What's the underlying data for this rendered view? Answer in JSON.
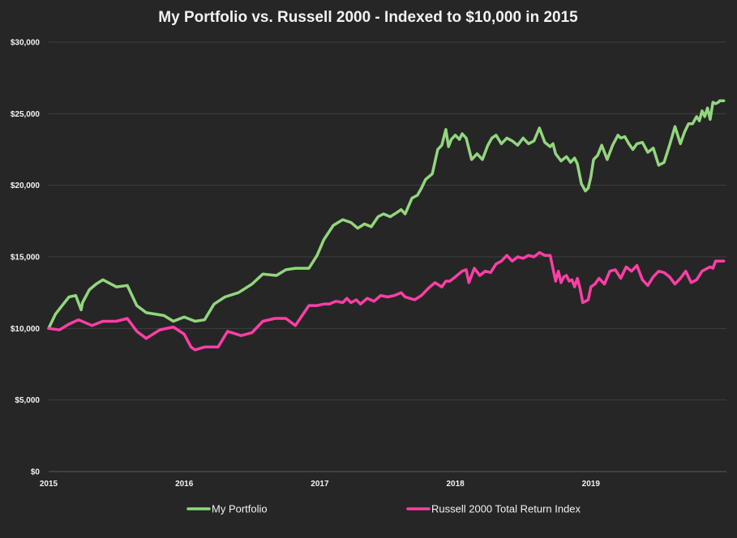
{
  "chart_data": {
    "type": "line",
    "title": "My Portfolio  vs. Russell  2000 - Indexed to $10,000 in 2015",
    "xlabel": "",
    "ylabel": "",
    "x_ticks": [
      {
        "value": 2015,
        "label": "2015"
      },
      {
        "value": 2016,
        "label": "2016"
      },
      {
        "value": 2017,
        "label": "2017"
      },
      {
        "value": 2018,
        "label": "2018"
      },
      {
        "value": 2019,
        "label": "2019"
      }
    ],
    "y_ticks": [
      {
        "value": 0,
        "label": "$0"
      },
      {
        "value": 5000,
        "label": "$5,000"
      },
      {
        "value": 10000,
        "label": "$10,000"
      },
      {
        "value": 15000,
        "label": "$15,000"
      },
      {
        "value": 20000,
        "label": "$20,000"
      },
      {
        "value": 25000,
        "label": "$25,000"
      },
      {
        "value": 30000,
        "label": "$30,000"
      }
    ],
    "xlim": [
      2015.0,
      2020.0
    ],
    "ylim": [
      0,
      30000
    ],
    "grid": true,
    "legend_position": "bottom",
    "series": [
      {
        "name": "My Portfolio",
        "color": "#92d67e",
        "x": [
          2015.0,
          2015.05,
          2015.1,
          2015.15,
          2015.2,
          2015.24,
          2015.25,
          2015.3,
          2015.35,
          2015.4,
          2015.5,
          2015.58,
          2015.65,
          2015.72,
          2015.85,
          2015.92,
          2016.0,
          2016.08,
          2016.15,
          2016.22,
          2016.3,
          2016.4,
          2016.5,
          2016.58,
          2016.68,
          2016.75,
          2016.82,
          2016.92,
          2016.98,
          2017.03,
          2017.1,
          2017.17,
          2017.23,
          2017.28,
          2017.33,
          2017.38,
          2017.43,
          2017.47,
          2017.52,
          2017.57,
          2017.6,
          2017.63,
          2017.68,
          2017.72,
          2017.75,
          2017.78,
          2017.83,
          2017.87,
          2017.9,
          2017.93,
          2017.95,
          2017.97,
          2018.0,
          2018.03,
          2018.05,
          2018.08,
          2018.12,
          2018.16,
          2018.2,
          2018.24,
          2018.27,
          2018.3,
          2018.34,
          2018.38,
          2018.42,
          2018.46,
          2018.5,
          2018.54,
          2018.58,
          2018.62,
          2018.66,
          2018.7,
          2018.72,
          2018.74,
          2018.78,
          2018.82,
          2018.85,
          2018.88,
          2018.9,
          2018.93,
          2018.96,
          2018.98,
          2019.0,
          2019.02,
          2019.05,
          2019.08,
          2019.12,
          2019.16,
          2019.2,
          2019.22,
          2019.25,
          2019.28,
          2019.31,
          2019.34,
          2019.38,
          2019.42,
          2019.46,
          2019.5,
          2019.54,
          2019.58,
          2019.62,
          2019.66,
          2019.69,
          2019.72,
          2019.75,
          2019.78,
          2019.8,
          2019.82,
          2019.84,
          2019.86,
          2019.88,
          2019.9,
          2019.92,
          2019.94,
          2019.95,
          2019.97,
          2019.98
        ],
        "values": [
          10000,
          11000,
          11600,
          12200,
          12300,
          11300,
          11800,
          12700,
          13100,
          13400,
          12900,
          13000,
          11600,
          11100,
          10900,
          10500,
          10800,
          10500,
          10600,
          11700,
          12200,
          12500,
          13100,
          13800,
          13700,
          14100,
          14200,
          14200,
          15100,
          16200,
          17200,
          17600,
          17400,
          17000,
          17300,
          17100,
          17800,
          18000,
          17800,
          18100,
          18300,
          18000,
          19100,
          19300,
          19800,
          20400,
          20800,
          22500,
          22800,
          23900,
          22700,
          23200,
          23500,
          23200,
          23600,
          23300,
          21800,
          22200,
          21800,
          22800,
          23300,
          23500,
          22900,
          23300,
          23100,
          22800,
          23300,
          22900,
          23100,
          24000,
          23000,
          22700,
          22900,
          22200,
          21700,
          22000,
          21600,
          21900,
          21500,
          20100,
          19600,
          19800,
          20600,
          21800,
          22100,
          22800,
          21800,
          22800,
          23500,
          23300,
          23400,
          22900,
          22500,
          22900,
          23000,
          22300,
          22600,
          21400,
          21600,
          22800,
          24100,
          22900,
          23700,
          24300,
          24300,
          24800,
          24500,
          25200,
          24800,
          25400,
          24600,
          25800,
          25700,
          25800,
          25900,
          25900,
          25900
        ]
      },
      {
        "name": "Russell 2000 Total Return Index",
        "color": "#ff3ea5",
        "x": [
          2015.0,
          2015.08,
          2015.15,
          2015.22,
          2015.32,
          2015.4,
          2015.5,
          2015.58,
          2015.65,
          2015.72,
          2015.82,
          2015.92,
          2016.0,
          2016.05,
          2016.08,
          2016.15,
          2016.25,
          2016.32,
          2016.42,
          2016.5,
          2016.58,
          2016.67,
          2016.75,
          2016.82,
          2016.87,
          2016.92,
          2016.98,
          2017.03,
          2017.07,
          2017.12,
          2017.17,
          2017.2,
          2017.23,
          2017.27,
          2017.3,
          2017.35,
          2017.4,
          2017.45,
          2017.5,
          2017.55,
          2017.6,
          2017.63,
          2017.7,
          2017.75,
          2017.8,
          2017.85,
          2017.9,
          2017.93,
          2017.96,
          2018.0,
          2018.05,
          2018.08,
          2018.1,
          2018.14,
          2018.18,
          2018.22,
          2018.26,
          2018.3,
          2018.34,
          2018.38,
          2018.42,
          2018.46,
          2018.5,
          2018.54,
          2018.58,
          2018.62,
          2018.66,
          2018.7,
          2018.74,
          2018.76,
          2018.78,
          2018.8,
          2018.82,
          2018.84,
          2018.86,
          2018.88,
          2018.9,
          2018.92,
          2018.94,
          2018.96,
          2018.98,
          2019.0,
          2019.03,
          2019.06,
          2019.1,
          2019.14,
          2019.18,
          2019.22,
          2019.26,
          2019.3,
          2019.34,
          2019.38,
          2019.42,
          2019.46,
          2019.5,
          2019.54,
          2019.58,
          2019.62,
          2019.66,
          2019.7,
          2019.74,
          2019.78,
          2019.82,
          2019.86,
          2019.88,
          2019.9,
          2019.92,
          2019.95,
          2019.98
        ],
        "values": [
          10000,
          9900,
          10300,
          10600,
          10200,
          10500,
          10500,
          10700,
          9800,
          9300,
          9900,
          10100,
          9600,
          8700,
          8500,
          8700,
          8700,
          9800,
          9500,
          9700,
          10500,
          10700,
          10700,
          10200,
          10900,
          11600,
          11600,
          11700,
          11700,
          11900,
          11800,
          12100,
          11800,
          12000,
          11700,
          12100,
          11900,
          12300,
          12200,
          12300,
          12500,
          12200,
          12000,
          12300,
          12800,
          13200,
          12900,
          13300,
          13300,
          13600,
          14000,
          14100,
          13200,
          14200,
          13700,
          14000,
          13900,
          14500,
          14700,
          15100,
          14700,
          15000,
          14900,
          15100,
          15000,
          15300,
          15100,
          15100,
          13300,
          14000,
          13200,
          13600,
          13700,
          13300,
          13400,
          12900,
          13500,
          12800,
          11800,
          11900,
          12000,
          12900,
          13100,
          13500,
          13100,
          14000,
          14100,
          13500,
          14300,
          14000,
          14400,
          13400,
          13000,
          13600,
          14000,
          13900,
          13600,
          13100,
          13500,
          14000,
          13200,
          13400,
          14000,
          14200,
          14300,
          14200,
          14700,
          14700,
          14700
        ]
      }
    ]
  }
}
